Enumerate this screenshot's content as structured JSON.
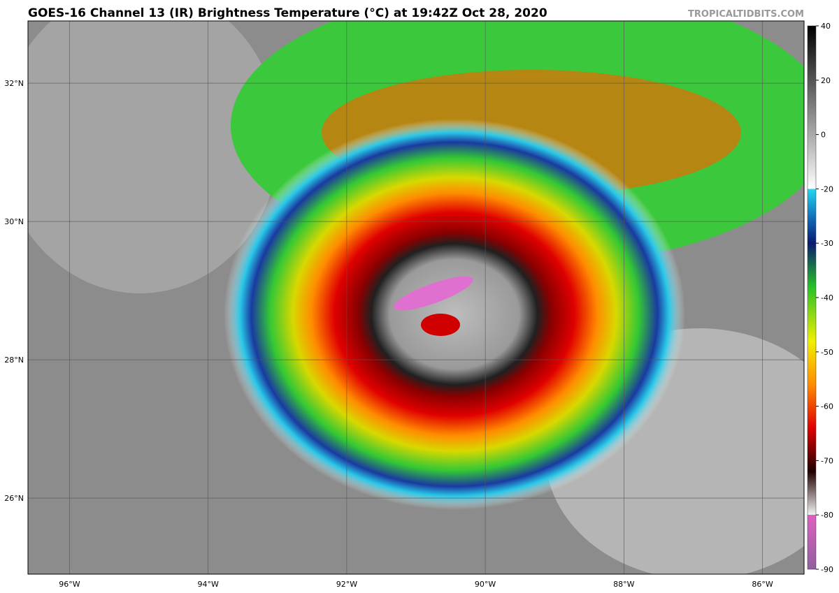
{
  "title": "GOES-16 Channel 13 (IR) Brightness Temperature (°C) at 19:42Z Oct 28, 2020",
  "credit": "TROPICALTIDBITS.COM",
  "map": {
    "lonlim": [
      -96.6,
      -85.4
    ],
    "latlim": [
      24.9,
      32.9
    ],
    "lat_ticks": [
      {
        "value": 32,
        "label": "32°N"
      },
      {
        "value": 30,
        "label": "30°N"
      },
      {
        "value": 28,
        "label": "28°N"
      },
      {
        "value": 26,
        "label": "26°N"
      }
    ],
    "lon_ticks": [
      {
        "value": -96,
        "label": "96°W"
      },
      {
        "value": -94,
        "label": "94°W"
      },
      {
        "value": -92,
        "label": "92°W"
      },
      {
        "value": -90,
        "label": "90°W"
      },
      {
        "value": -88,
        "label": "88°W"
      },
      {
        "value": -86,
        "label": "86°W"
      }
    ]
  },
  "colorbar": {
    "range": [
      -90,
      40
    ],
    "ticks": [
      40,
      20,
      0,
      -20,
      -30,
      -40,
      -50,
      -60,
      -70,
      -80,
      -90
    ]
  }
}
